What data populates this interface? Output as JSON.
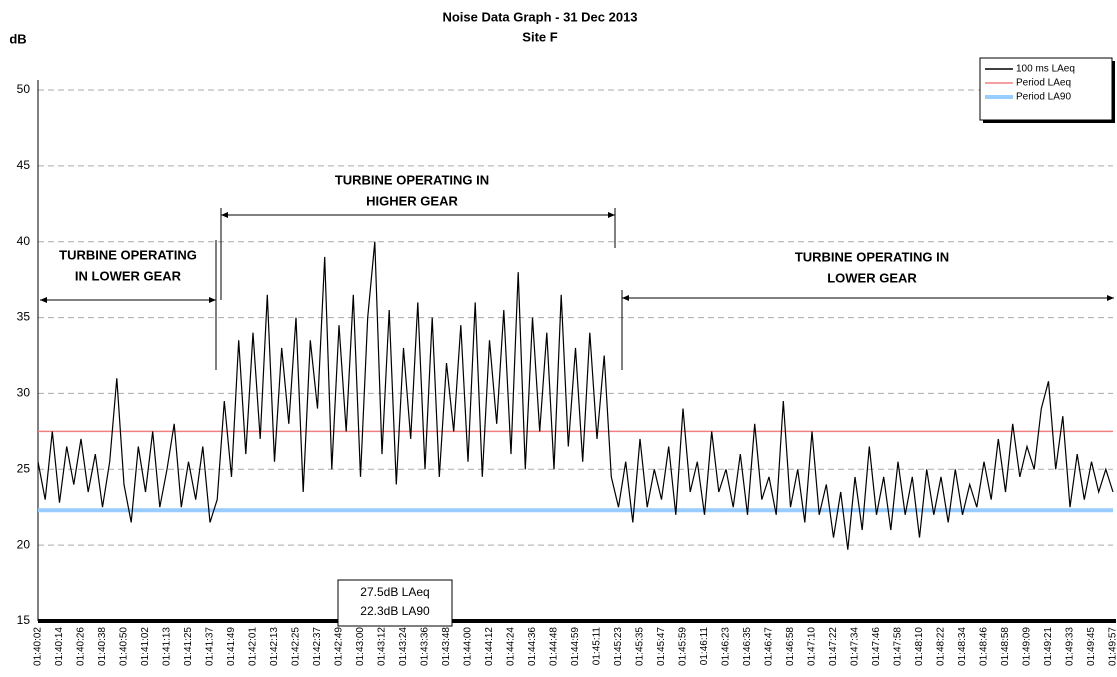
{
  "chart_data": {
    "type": "line",
    "title": "Noise Data Graph - 31 Dec 2013",
    "subtitle": "Site F",
    "y_label": "dB",
    "categories": [
      "01:40:02",
      null,
      null,
      "01:40:14",
      null,
      null,
      "01:40:26",
      null,
      null,
      "01:40:38",
      null,
      null,
      "01:40:50",
      null,
      null,
      "01:41:02",
      null,
      null,
      "01:41:13",
      null,
      null,
      "01:41:25",
      null,
      null,
      "01:41:37",
      null,
      null,
      "01:41:49",
      null,
      null,
      "01:42:01",
      null,
      null,
      "01:42:13",
      null,
      null,
      "01:42:25",
      null,
      null,
      "01:42:37",
      null,
      null,
      "01:42:49",
      null,
      null,
      "01:43:00",
      null,
      null,
      "01:43:12",
      null,
      null,
      "01:43:24",
      null,
      null,
      "01:43:36",
      null,
      null,
      "01:43:48",
      null,
      null,
      "01:44:00",
      null,
      null,
      "01:44:12",
      null,
      null,
      "01:44:24",
      null,
      null,
      "01:44:36",
      null,
      null,
      "01:44:48",
      null,
      null,
      "01:44:59",
      null,
      null,
      "01:45:11",
      null,
      null,
      "01:45:23",
      null,
      null,
      "01:45:35",
      null,
      null,
      "01:45:47",
      null,
      null,
      "01:45:59",
      null,
      null,
      "01:46:11",
      null,
      null,
      "01:46:23",
      null,
      null,
      "01:46:35",
      null,
      null,
      "01:46:47",
      null,
      null,
      "01:46:58",
      null,
      null,
      "01:47:10",
      null,
      null,
      "01:47:22",
      null,
      null,
      "01:47:34",
      null,
      null,
      "01:47:46",
      null,
      null,
      "01:47:58",
      null,
      null,
      "01:48:10",
      null,
      null,
      "01:48:22",
      null,
      null,
      "01:48:34",
      null,
      null,
      "01:48:46",
      null,
      null,
      "01:48:58",
      null,
      null,
      "01:49:09",
      null,
      null,
      "01:49:21",
      null,
      null,
      "01:49:33",
      null,
      null,
      "01:49:45",
      null,
      null,
      "01:49:57"
    ],
    "series": [
      {
        "name": "100 ms LAeq",
        "color": "#000000",
        "values": [
          25.5,
          23.0,
          27.5,
          22.8,
          26.5,
          24.0,
          27.0,
          23.5,
          26.0,
          22.5,
          25.5,
          31.0,
          24.0,
          21.5,
          26.5,
          23.5,
          27.5,
          22.5,
          25.0,
          28.0,
          22.5,
          25.5,
          23.0,
          26.5,
          21.5,
          23.0,
          29.5,
          24.5,
          33.5,
          26.0,
          34.0,
          27.0,
          36.5,
          25.5,
          33.0,
          28.0,
          35.0,
          23.5,
          33.5,
          29.0,
          39.0,
          25.0,
          34.5,
          27.5,
          36.5,
          24.5,
          35.0,
          40.0,
          26.0,
          35.5,
          24.0,
          33.0,
          27.0,
          36.0,
          25.0,
          35.0,
          24.5,
          32.0,
          27.5,
          34.5,
          25.5,
          36.0,
          24.5,
          33.5,
          28.0,
          35.5,
          26.0,
          38.0,
          25.0,
          35.0,
          27.5,
          34.0,
          25.0,
          36.5,
          26.5,
          33.0,
          25.5,
          34.0,
          27.0,
          32.5,
          24.5,
          22.5,
          25.5,
          21.5,
          27.0,
          22.5,
          25.0,
          23.0,
          26.5,
          22.0,
          29.0,
          23.5,
          25.5,
          22.0,
          27.5,
          23.5,
          25.0,
          22.5,
          26.0,
          22.0,
          28.0,
          23.0,
          24.5,
          22.0,
          29.5,
          22.5,
          25.0,
          21.5,
          27.5,
          22.0,
          24.0,
          20.5,
          23.5,
          19.7,
          24.5,
          21.0,
          26.5,
          22.0,
          24.5,
          21.0,
          25.5,
          22.0,
          24.5,
          20.5,
          25.0,
          22.0,
          24.5,
          21.5,
          25.0,
          22.0,
          24.0,
          22.5,
          25.5,
          23.0,
          27.0,
          23.5,
          28.0,
          24.5,
          26.5,
          25.0,
          29.0,
          30.8,
          25.0,
          28.5,
          22.5,
          26.0,
          23.0,
          25.5,
          23.5,
          25.0,
          23.5
        ]
      }
    ],
    "reference_lines": [
      {
        "name": "Period LAeq",
        "color": "#f08080",
        "value": 27.5
      },
      {
        "name": "Period LA90",
        "color": "#99ccff",
        "value": 22.3
      }
    ],
    "ylim": [
      15,
      50
    ],
    "yticks": [
      15,
      20,
      25,
      30,
      35,
      40,
      45,
      50
    ],
    "grid": true,
    "legend": "top-right",
    "annotations": [
      {
        "lines": [
          "TURBINE OPERATING",
          "IN LOWER GEAR"
        ]
      },
      {
        "lines": [
          "TURBINE OPERATING IN",
          "HIGHER GEAR"
        ]
      },
      {
        "lines": [
          "TURBINE OPERATING IN",
          "LOWER GEAR"
        ]
      }
    ],
    "text_box": [
      "27.5dB LAeq",
      "22.3dB LA90"
    ]
  }
}
